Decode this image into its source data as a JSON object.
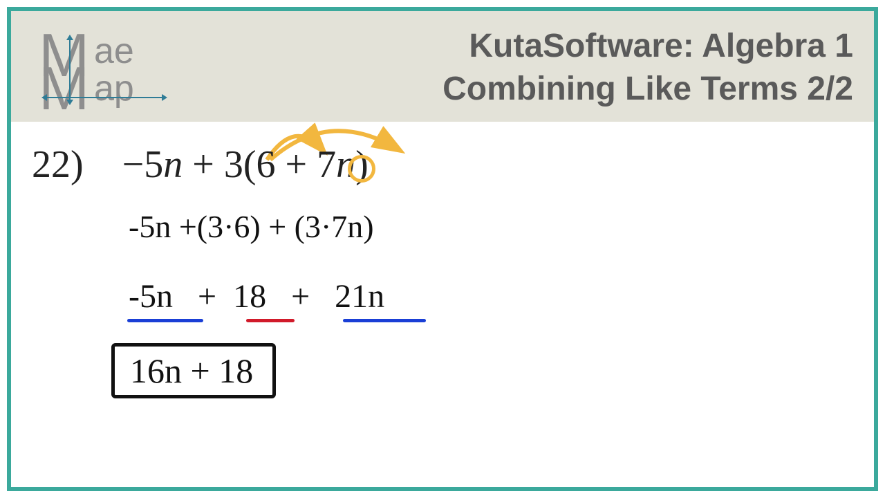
{
  "colors": {
    "frame_border": "#3ba99c",
    "header_bg": "#e3e2d8",
    "logo_gray": "#8e8e8e",
    "logo_arrow": "#2f7c96",
    "title_text": "#5a5a5a",
    "problem_text": "#222222",
    "handwriting": "#111111",
    "accent_yellow": "#f2b73f",
    "underline_blue": "#1a3fd6",
    "underline_red": "#d11a2a"
  },
  "logo": {
    "m1": "M",
    "ae": "ae",
    "m2": "M",
    "ap": "ap"
  },
  "title": {
    "line1": "KutaSoftware: Algebra 1",
    "line2": "Combining Like Terms 2/2"
  },
  "problem": {
    "number": "22)",
    "expression_prefix": "−5",
    "var1": "n",
    "plus1": " + 3(6 ",
    "plus_sym": "+",
    "rest": " 7",
    "var2": "n",
    "close": ")"
  },
  "steps": {
    "step2": "-5n  +(3·6) + (3·7n)",
    "step3_a": "-5n",
    "step3_b": "+",
    "step3_c": "18",
    "step3_d": "+",
    "step3_e": "21n",
    "answer": "16n  +  18"
  }
}
